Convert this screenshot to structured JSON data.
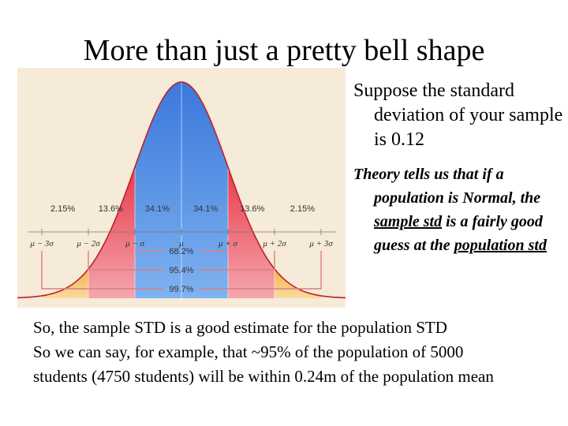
{
  "slide": {
    "title": "More than just a pretty bell shape",
    "para1": {
      "text": "Suppose the standard deviation of your sample is 0.12"
    },
    "para2": {
      "lead": "Theory tells us that if a population is Normal, the ",
      "u1": "sample std",
      "mid": " is a fairly good guess at the ",
      "u2": "population std"
    },
    "bottom": {
      "line1": "So, the sample STD is a good estimate for the population STD",
      "line2": "So we can say, for example, that ~95% of the population of 5000",
      "line3": "students (4750 students) will be within 0.24m of the population mean"
    }
  },
  "diagram": {
    "region_percents": [
      "2.15%",
      "13.6%",
      "34.1%",
      "34.1%",
      "13.6%",
      "2.15%"
    ],
    "axis_labels": [
      "μ − 3σ",
      "μ − 2σ",
      "μ − σ",
      "μ",
      "μ + σ",
      "μ + 2σ",
      "μ + 3σ"
    ],
    "coverage": [
      {
        "k": 1,
        "label": "68.2%"
      },
      {
        "k": 2,
        "label": "95.4%"
      },
      {
        "k": 3,
        "label": "99.7%"
      }
    ],
    "colors": {
      "center": "#3a78dc",
      "center_light": "#7fb2f0",
      "band2": "#e83a4a",
      "band2_light": "#f4a6ae",
      "tail": "#f2b24a",
      "background": "#f6ead8",
      "curve": "#c0202a",
      "bracket": "#d98080"
    }
  }
}
